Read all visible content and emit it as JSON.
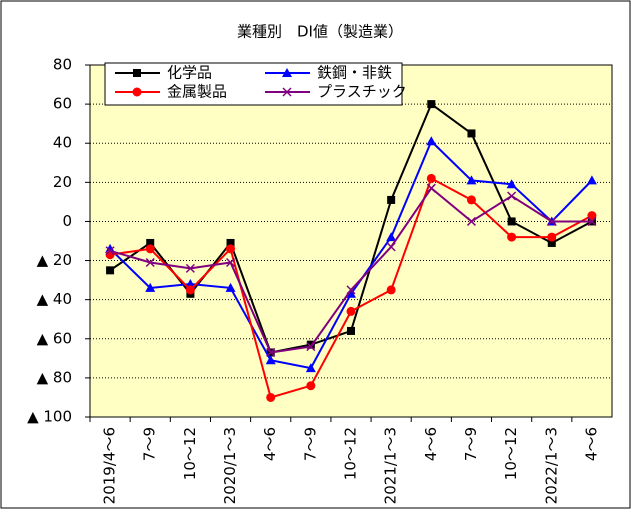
{
  "chart_data": {
    "type": "line",
    "title": "業種別　DI値（製造業）",
    "categories": [
      "2019/4～6",
      "7～9",
      "10～12",
      "2020/1～3",
      "4～6",
      "7～9",
      "10～12",
      "2021/1～3",
      "4～6",
      "7～9",
      "10～12",
      "2022/1～3",
      "4～6"
    ],
    "series": [
      {
        "name": "化学品",
        "color": "#000000",
        "marker": "square",
        "values": [
          -25,
          -11,
          -37,
          -11,
          -67,
          -63,
          -56,
          11,
          60,
          45,
          0,
          -11,
          0
        ]
      },
      {
        "name": "鉄鋼・非鉄",
        "color": "#0000ff",
        "marker": "triangle",
        "values": [
          -14,
          -34,
          -32,
          -34,
          -71,
          -75,
          -37,
          -8,
          41,
          21,
          19,
          0,
          21
        ]
      },
      {
        "name": "金属製品",
        "color": "#ff0000",
        "marker": "circle",
        "values": [
          -17,
          -14,
          -35,
          -14,
          -90,
          -84,
          -46,
          -35,
          22,
          11,
          -8,
          -8,
          3
        ]
      },
      {
        "name": "プラスチック",
        "color": "#800080",
        "marker": "x",
        "values": [
          -15,
          -21,
          -24,
          -21,
          -67,
          -64,
          -35,
          -13,
          17,
          0,
          13,
          0,
          0
        ]
      }
    ],
    "ylim": [
      -100,
      80
    ],
    "yticks": [
      80,
      60,
      40,
      20,
      0,
      {
        "value": -20,
        "label": "▲ 20"
      },
      {
        "value": -40,
        "label": "▲ 40"
      },
      {
        "value": -60,
        "label": "▲ 60"
      },
      {
        "value": -80,
        "label": "▲ 80"
      },
      {
        "value": -100,
        "label": "▲ 100"
      }
    ],
    "grid": true,
    "legend": "top-left"
  }
}
